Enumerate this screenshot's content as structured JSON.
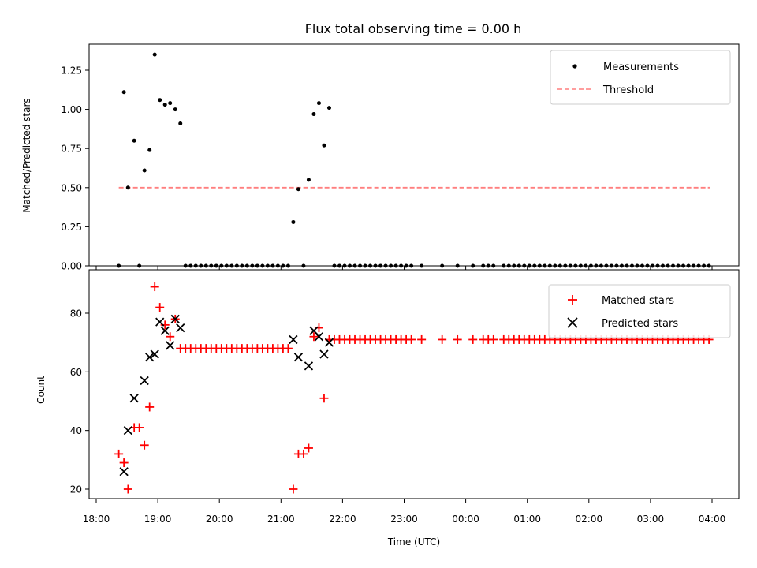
{
  "chart_data": [
    {
      "type": "scatter",
      "title": "Flux total observing time = 0.00 h",
      "ylabel": "Matched/Predicted stars",
      "xlabel": "",
      "xlim": [
        "18:00",
        "04:12"
      ],
      "ylim": [
        0,
        1.42
      ],
      "yticks": [
        0.0,
        0.25,
        0.5,
        0.75,
        1.0,
        1.25
      ],
      "ytick_labels": [
        "0.00",
        "0.25",
        "0.50",
        "0.75",
        "1.00",
        "1.25"
      ],
      "legend": {
        "position": "top-right",
        "entries": [
          "Measurements",
          "Threshold"
        ]
      },
      "colors": {
        "measurements": "#000000",
        "threshold": "#ff7f7f"
      },
      "threshold": {
        "value": 0.5,
        "x_start": "18:22",
        "x_end": "03:58"
      },
      "series": [
        {
          "name": "Measurements",
          "x": [
            "18:22",
            "18:27",
            "18:31",
            "18:37",
            "18:42",
            "18:47",
            "18:52",
            "18:57",
            "19:02",
            "19:07",
            "19:12",
            "19:17",
            "19:22",
            "19:27",
            "19:32",
            "19:37",
            "19:42",
            "19:47",
            "19:52",
            "19:57",
            "20:02",
            "20:07",
            "20:12",
            "20:17",
            "20:22",
            "20:27",
            "20:32",
            "20:37",
            "20:42",
            "20:47",
            "20:52",
            "20:57",
            "21:02",
            "21:07",
            "21:12",
            "21:17",
            "21:22",
            "21:27",
            "21:32",
            "21:37",
            "21:42",
            "21:47",
            "21:52",
            "21:57",
            "22:02",
            "22:07",
            "22:12",
            "22:17",
            "22:22",
            "22:27",
            "22:32",
            "22:37",
            "22:42",
            "22:47",
            "22:52",
            "22:57",
            "23:02",
            "23:07",
            "23:17",
            "23:37",
            "23:52",
            "00:07",
            "00:17",
            "00:22",
            "00:27",
            "00:37",
            "00:42",
            "00:47",
            "00:52",
            "00:57",
            "01:02",
            "01:07",
            "01:12",
            "01:17",
            "01:22",
            "01:27",
            "01:32",
            "01:37",
            "01:42",
            "01:47",
            "01:52",
            "01:57",
            "02:02",
            "02:07",
            "02:12",
            "02:17",
            "02:22",
            "02:27",
            "02:32",
            "02:37",
            "02:42",
            "02:47",
            "02:52",
            "02:57",
            "03:02",
            "03:07",
            "03:12",
            "03:17",
            "03:22",
            "03:27",
            "03:32",
            "03:37",
            "03:42",
            "03:47",
            "03:52",
            "03:57"
          ],
          "y": [
            0.0,
            1.11,
            0.5,
            0.8,
            0.0,
            0.61,
            0.74,
            1.35,
            1.06,
            1.03,
            1.04,
            1.0,
            0.91,
            0.0,
            0.0,
            0.0,
            0.0,
            0.0,
            0.0,
            0.0,
            0.0,
            0.0,
            0.0,
            0.0,
            0.0,
            0.0,
            0.0,
            0.0,
            0.0,
            0.0,
            0.0,
            0.0,
            0.0,
            0.0,
            0.28,
            0.49,
            0.0,
            0.55,
            0.97,
            1.04,
            0.77,
            1.01,
            0.0,
            0.0,
            0.0,
            0.0,
            0.0,
            0.0,
            0.0,
            0.0,
            0.0,
            0.0,
            0.0,
            0.0,
            0.0,
            0.0,
            0.0,
            0.0,
            0.0,
            0.0,
            0.0,
            0.0,
            0.0,
            0.0,
            0.0,
            0.0,
            0.0,
            0.0,
            0.0,
            0.0,
            0.0,
            0.0,
            0.0,
            0.0,
            0.0,
            0.0,
            0.0,
            0.0,
            0.0,
            0.0,
            0.0,
            0.0,
            0.0,
            0.0,
            0.0,
            0.0,
            0.0,
            0.0,
            0.0,
            0.0,
            0.0,
            0.0,
            0.0,
            0.0,
            0.0,
            0.0,
            0.0,
            0.0,
            0.0,
            0.0,
            0.0,
            0.0,
            0.0,
            0.0,
            0.0,
            0.0
          ]
        }
      ]
    },
    {
      "type": "scatter",
      "title": "",
      "ylabel": "Count",
      "xlabel": "Time (UTC)",
      "xlim": [
        "18:00",
        "04:12"
      ],
      "ylim": [
        16,
        92
      ],
      "yticks": [
        20,
        40,
        60,
        80
      ],
      "ytick_labels": [
        "20",
        "40",
        "60",
        "80"
      ],
      "xticks": [
        "18:00",
        "19:00",
        "20:00",
        "21:00",
        "22:00",
        "23:00",
        "00:00",
        "01:00",
        "02:00",
        "03:00",
        "04:00"
      ],
      "xtick_labels": [
        "18:00",
        "19:00",
        "20:00",
        "21:00",
        "22:00",
        "23:00",
        "00:00",
        "01:00",
        "02:00",
        "03:00",
        "04:00"
      ],
      "legend": {
        "position": "top-right",
        "entries": [
          "Matched stars",
          "Predicted stars"
        ]
      },
      "colors": {
        "matched": "#ff0000",
        "predicted": "#000000"
      },
      "series": [
        {
          "name": "Matched stars",
          "marker": "plus",
          "x": [
            "18:22",
            "18:27",
            "18:31",
            "18:37",
            "18:42",
            "18:47",
            "18:52",
            "18:57",
            "19:02",
            "19:07",
            "19:12",
            "19:17",
            "19:22",
            "19:27",
            "19:32",
            "19:37",
            "19:42",
            "19:47",
            "19:52",
            "19:57",
            "20:02",
            "20:07",
            "20:12",
            "20:17",
            "20:22",
            "20:27",
            "20:32",
            "20:37",
            "20:42",
            "20:47",
            "20:52",
            "20:57",
            "21:02",
            "21:07",
            "21:12",
            "21:17",
            "21:22",
            "21:27",
            "21:32",
            "21:37",
            "21:42",
            "21:47",
            "21:52",
            "21:57",
            "22:02",
            "22:07",
            "22:12",
            "22:17",
            "22:22",
            "22:27",
            "22:32",
            "22:37",
            "22:42",
            "22:47",
            "22:52",
            "22:57",
            "23:02",
            "23:07",
            "23:17",
            "23:37",
            "23:52",
            "00:07",
            "00:17",
            "00:22",
            "00:27",
            "00:37",
            "00:42",
            "00:47",
            "00:52",
            "00:57",
            "01:02",
            "01:07",
            "01:12",
            "01:17",
            "01:22",
            "01:27",
            "01:32",
            "01:37",
            "01:42",
            "01:47",
            "01:52",
            "01:57",
            "02:02",
            "02:07",
            "02:12",
            "02:17",
            "02:22",
            "02:27",
            "02:32",
            "02:37",
            "02:42",
            "02:47",
            "02:52",
            "02:57",
            "03:02",
            "03:07",
            "03:12",
            "03:17",
            "03:22",
            "03:27",
            "03:32",
            "03:37",
            "03:42",
            "03:47",
            "03:52",
            "03:57"
          ],
          "y": [
            32,
            29,
            20,
            41,
            41,
            35,
            48,
            89,
            82,
            76,
            72,
            78,
            68,
            68,
            68,
            68,
            68,
            68,
            68,
            68,
            68,
            68,
            68,
            68,
            68,
            68,
            68,
            68,
            68,
            68,
            68,
            68,
            68,
            68,
            20,
            32,
            32,
            34,
            72,
            75,
            51,
            71,
            71,
            71,
            71,
            71,
            71,
            71,
            71,
            71,
            71,
            71,
            71,
            71,
            71,
            71,
            71,
            71,
            71,
            71,
            71,
            71,
            71,
            71,
            71,
            71,
            71,
            71,
            71,
            71,
            71,
            71,
            71,
            71,
            71,
            71,
            71,
            71,
            71,
            71,
            71,
            71,
            71,
            71,
            71,
            71,
            71,
            71,
            71,
            71,
            71,
            71,
            71,
            71,
            71,
            71,
            71,
            71,
            71,
            71,
            71,
            71,
            71,
            71,
            71,
            71
          ]
        },
        {
          "name": "Predicted stars",
          "marker": "x",
          "x": [
            "18:27",
            "18:31",
            "18:37",
            "18:47",
            "18:52",
            "18:57",
            "19:02",
            "19:07",
            "19:12",
            "19:17",
            "19:22",
            "21:12",
            "21:17",
            "21:27",
            "21:32",
            "21:37",
            "21:42",
            "21:47"
          ],
          "y": [
            26,
            40,
            51,
            57,
            65,
            66,
            77,
            74,
            69,
            78,
            75,
            71,
            65,
            62,
            74,
            72,
            66,
            70
          ]
        }
      ]
    }
  ]
}
